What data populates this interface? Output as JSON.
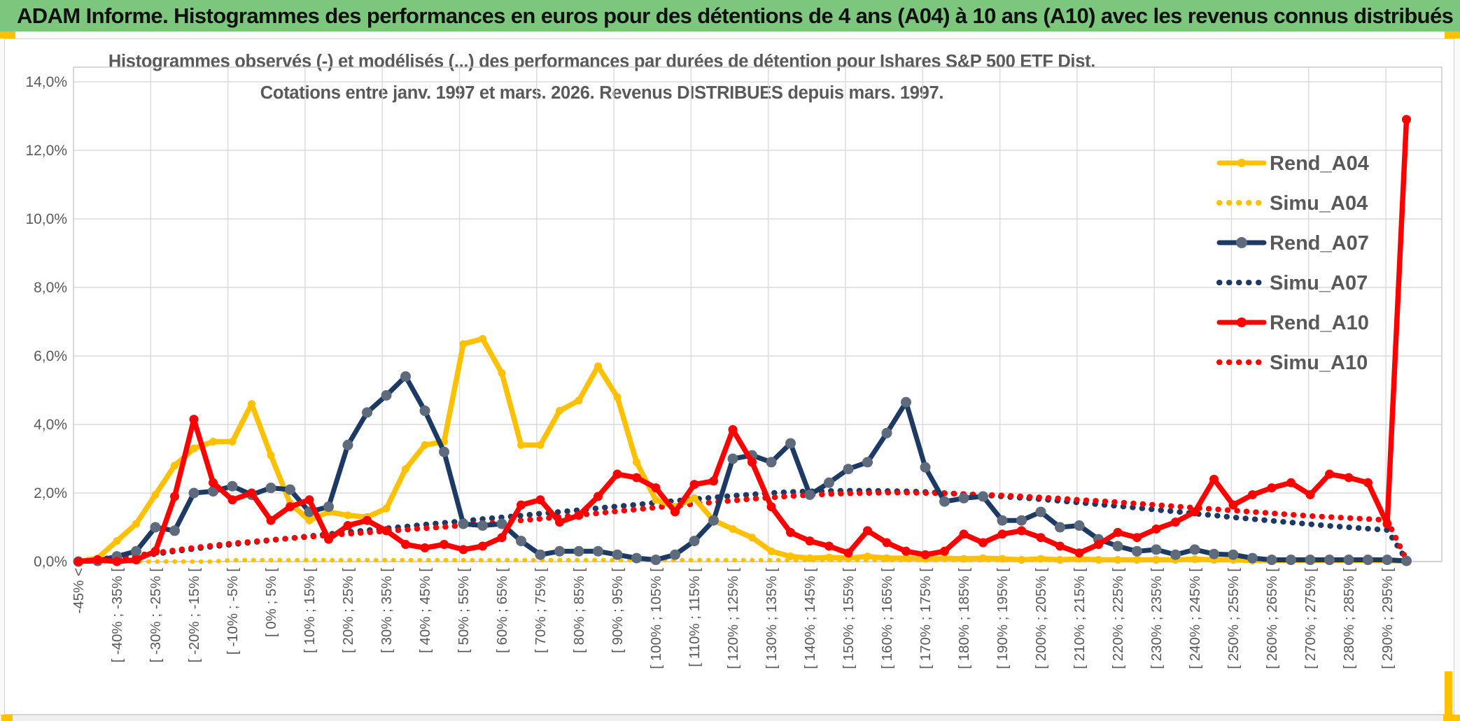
{
  "banner": {
    "title": "ADAM Informe. Histogrammes des performances en euros pour des détentions de 4 ans (A04) à 10 ans (A10) avec les revenus connus distribués",
    "bg_color": "#7DC67E",
    "text_color": "#101010"
  },
  "accent_color": "#FFC000",
  "text_color": "#595959",
  "grid_color": "#DADADA",
  "border_color": "#C8C8C8",
  "chart_data": {
    "type": "line",
    "title": "Histogrammes observés (-) et modélisés (...) des performances par durées de détention pour Ishares S&P 500 ETF Dist.",
    "subtitle": "Cotations entre janv. 1997 et mars. 2026. Revenus DISTRIBUES depuis mars. 1997.",
    "ylim": [
      0,
      14
    ],
    "ytick_step_pct": 2,
    "ytick_labels": [
      "0,0%",
      "2,0%",
      "4,0%",
      "6,0%",
      "8,0%",
      "10,0%",
      "12,0%",
      "14,0%"
    ],
    "grid": true,
    "legend_position": "right-inside",
    "categories": [
      "-45% <",
      "",
      "[ -40% ; -35% [",
      "",
      "[ -30% ; -25% [",
      "",
      "[ -20% ; -15% [",
      "",
      "[ -10% ; -5% [",
      "",
      "[ 0% ; 5% [",
      "",
      "[ 10% ; 15% [",
      "",
      "[ 20% ; 25% [",
      "",
      "[ 30% ; 35% [",
      "",
      "[ 40% ; 45% [",
      "",
      "[ 50% ; 55% [",
      "",
      "[ 60% ; 65% [",
      "",
      "[ 70% ; 75% [",
      "",
      "[ 80% ; 85% [",
      "",
      "[ 90% ; 95% [",
      "",
      "[ 100% ; 105% [",
      "",
      "[ 110% ; 115% [",
      "",
      "[ 120% ; 125% [",
      "",
      "[ 130% ; 135% [",
      "",
      "[ 140% ; 145% [",
      "",
      "[ 150% ; 155% [",
      "",
      "[ 160% ; 165% [",
      "",
      "[ 170% ; 175% [",
      "",
      "[ 180% ; 185% [",
      "",
      "[ 190% ; 195% [",
      "",
      "[ 200% ; 205% [",
      "",
      "[ 210% ; 215% [",
      "",
      "[ 220% ; 225% [",
      "",
      "[ 230% ; 235% [",
      "",
      "[ 240% ; 245% [",
      "",
      "[ 250% ; 255% [",
      "",
      "[ 260% ; 265% [",
      "",
      "[ 270% ; 275% [",
      "",
      "[ 280% ; 285% [",
      "",
      "[ 290% ; 295% [",
      ""
    ],
    "series": [
      {
        "name": "Rend_A04",
        "style": "solid",
        "color": "#FFC000",
        "marker_color": "#FFC000",
        "marker_r": 5.5,
        "width": 7.5,
        "values": [
          0,
          0.1,
          0.6,
          1.1,
          1.95,
          2.8,
          3.3,
          3.5,
          3.5,
          4.6,
          3.1,
          1.7,
          1.2,
          1.45,
          1.35,
          1.3,
          1.55,
          2.7,
          3.4,
          3.5,
          6.35,
          6.5,
          5.5,
          3.4,
          3.4,
          4.4,
          4.7,
          5.7,
          4.8,
          2.9,
          1.8,
          1.6,
          1.85,
          1.2,
          0.95,
          0.7,
          0.3,
          0.15,
          0.1,
          0.12,
          0.1,
          0.15,
          0.1,
          0.1,
          0.08,
          0.1,
          0.08,
          0.1,
          0.08,
          0.05,
          0.08,
          0.05,
          0.08,
          0.05,
          0.05,
          0.05,
          0.05,
          0.05,
          0.07,
          0.05,
          0.05,
          0.03,
          0.03,
          0.03,
          0.03,
          0.03,
          0.03,
          0.03,
          0.03,
          0
        ]
      },
      {
        "name": "Simu_A04",
        "style": "dotted",
        "color": "#FFC000",
        "width": 6.5,
        "values": [
          0,
          0,
          0,
          0,
          0,
          0,
          0,
          0,
          0.04,
          0.04,
          0.04,
          0.04,
          0.04,
          0.04,
          0.04,
          0.04,
          0.04,
          0.04,
          0.04,
          0.04,
          0.04,
          0.04,
          0.04,
          0.04,
          0.04,
          0.04,
          0.04,
          0.04,
          0.04,
          0.04,
          0.04,
          0.04,
          0.04,
          0.04,
          0.04,
          0.04,
          0.04,
          0.04,
          0.04,
          0.04,
          0.04,
          0.04,
          0.04,
          0.04,
          0.04,
          0.04,
          0.04,
          0.04,
          0.04,
          0.04,
          0.04,
          0.04,
          0.04,
          0.04,
          0.04,
          0.04,
          0.04,
          0.04,
          0.04,
          0.04,
          0.04,
          0.04,
          0.04,
          0.04,
          0.04,
          0.04,
          0.04,
          0.04,
          0.04,
          0.02
        ]
      },
      {
        "name": "Rend_A07",
        "style": "solid",
        "color": "#1C3A63",
        "marker_color": "#5D6B7C",
        "marker_r": 7.5,
        "width": 7,
        "values": [
          0,
          0.02,
          0.15,
          0.3,
          1,
          0.9,
          2,
          2.05,
          2.2,
          1.95,
          2.15,
          2.1,
          1.45,
          1.6,
          3.4,
          4.35,
          4.85,
          5.4,
          4.4,
          3.2,
          1.1,
          1.05,
          1.1,
          0.6,
          0.2,
          0.3,
          0.3,
          0.3,
          0.2,
          0.1,
          0.05,
          0.2,
          0.6,
          1.2,
          3,
          3.1,
          2.9,
          3.45,
          1.95,
          2.3,
          2.7,
          2.9,
          3.75,
          4.65,
          2.75,
          1.75,
          1.85,
          1.9,
          1.2,
          1.2,
          1.45,
          1,
          1.05,
          0.65,
          0.45,
          0.3,
          0.35,
          0.2,
          0.35,
          0.22,
          0.2,
          0.1,
          0.05,
          0.05,
          0.05,
          0.05,
          0.05,
          0.05,
          0.05,
          0.02
        ]
      },
      {
        "name": "Simu_A07",
        "style": "dotted",
        "color": "#1C3A63",
        "width": 8,
        "values": [
          0.02,
          0.05,
          0.1,
          0.15,
          0.22,
          0.3,
          0.37,
          0.44,
          0.5,
          0.56,
          0.62,
          0.68,
          0.74,
          0.8,
          0.86,
          0.91,
          0.97,
          1.02,
          1.08,
          1.13,
          1.18,
          1.24,
          1.29,
          1.34,
          1.4,
          1.45,
          1.5,
          1.56,
          1.61,
          1.66,
          1.72,
          1.77,
          1.82,
          1.87,
          1.92,
          1.96,
          2,
          2.03,
          2.05,
          2.06,
          2.07,
          2.07,
          2.06,
          2.05,
          2.03,
          2,
          1.97,
          1.94,
          1.9,
          1.86,
          1.82,
          1.77,
          1.72,
          1.67,
          1.62,
          1.57,
          1.51,
          1.46,
          1.4,
          1.35,
          1.29,
          1.24,
          1.19,
          1.14,
          1.09,
          1.04,
          1,
          0.96,
          0.92,
          0.05
        ]
      },
      {
        "name": "Rend_A10",
        "style": "solid",
        "color": "#FF0000",
        "marker_color": "#FF0000",
        "marker_r": 6.5,
        "width": 7.5,
        "values": [
          0,
          0.05,
          0,
          0.05,
          0.3,
          1.9,
          4.15,
          2.3,
          1.8,
          2,
          1.2,
          1.6,
          1.8,
          0.65,
          1.05,
          1.2,
          0.9,
          0.5,
          0.4,
          0.5,
          0.35,
          0.45,
          0.7,
          1.65,
          1.8,
          1.15,
          1.35,
          1.9,
          2.55,
          2.45,
          2.15,
          1.45,
          2.25,
          2.35,
          3.85,
          2.9,
          1.6,
          0.85,
          0.6,
          0.45,
          0.25,
          0.9,
          0.55,
          0.3,
          0.2,
          0.3,
          0.8,
          0.55,
          0.8,
          0.9,
          0.7,
          0.45,
          0.25,
          0.5,
          0.85,
          0.7,
          0.95,
          1.15,
          1.45,
          2.4,
          1.65,
          1.95,
          2.15,
          2.3,
          1.95,
          2.55,
          2.45,
          2.3,
          1.1,
          12.9
        ]
      },
      {
        "name": "Simu_A10",
        "style": "dotted",
        "color": "#FF0000",
        "width": 8,
        "values": [
          0.03,
          0.07,
          0.12,
          0.18,
          0.25,
          0.33,
          0.4,
          0.47,
          0.53,
          0.58,
          0.63,
          0.68,
          0.72,
          0.77,
          0.81,
          0.85,
          0.89,
          0.93,
          0.97,
          1.01,
          1.06,
          1.1,
          1.15,
          1.2,
          1.25,
          1.3,
          1.36,
          1.41,
          1.47,
          1.52,
          1.58,
          1.63,
          1.68,
          1.73,
          1.78,
          1.83,
          1.87,
          1.91,
          1.94,
          1.97,
          1.99,
          2,
          2.01,
          2.01,
          2,
          1.99,
          1.97,
          1.95,
          1.93,
          1.9,
          1.87,
          1.84,
          1.8,
          1.77,
          1.73,
          1.69,
          1.65,
          1.61,
          1.57,
          1.53,
          1.49,
          1.45,
          1.41,
          1.37,
          1.33,
          1.3,
          1.27,
          1.24,
          1.21,
          0.05
        ]
      }
    ]
  }
}
